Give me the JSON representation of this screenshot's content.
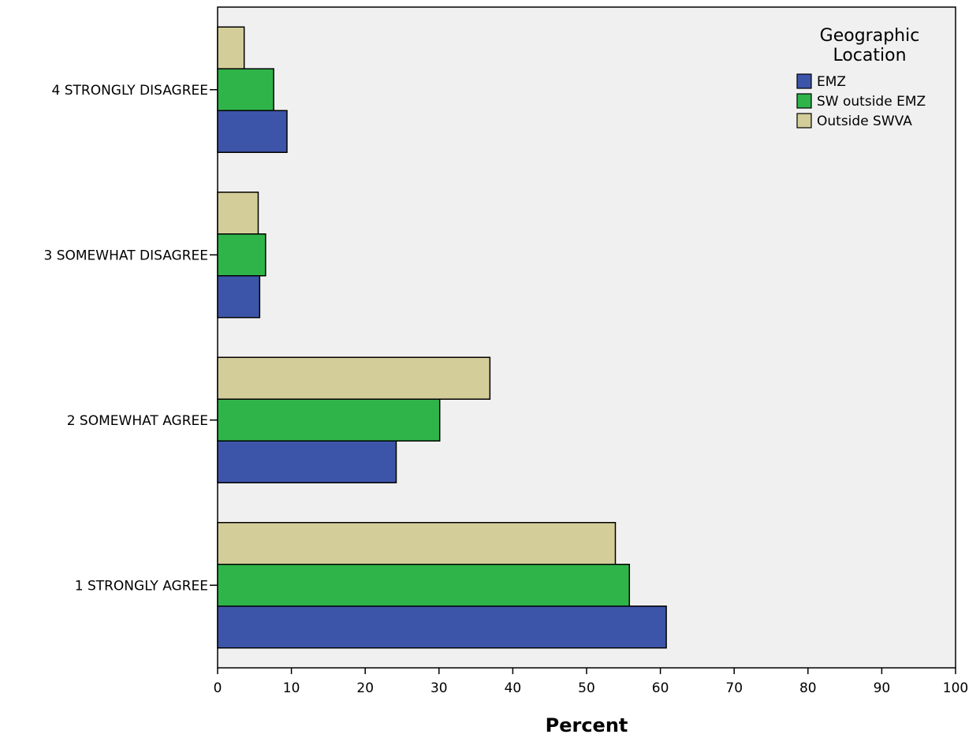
{
  "chart_data": {
    "type": "bar",
    "orientation": "horizontal",
    "title": "",
    "xlabel": "Percent",
    "ylabel": "",
    "xlim": [
      0,
      100
    ],
    "xticks": [
      0,
      10,
      20,
      30,
      40,
      50,
      60,
      70,
      80,
      90,
      100
    ],
    "grid": false,
    "legend": {
      "title_lines": [
        "Geographic",
        "Location"
      ],
      "placement": "top-right"
    },
    "categories": [
      "1  STRONGLY AGREE",
      "2  SOMEWHAT AGREE",
      "3  SOMEWHAT DISAGREE",
      "4  STRONGLY DISAGREE"
    ],
    "series": [
      {
        "name": "EMZ",
        "color": "#3d55a9",
        "values": [
          60.8,
          24.2,
          5.7,
          9.4
        ]
      },
      {
        "name": "SW outside EMZ",
        "color": "#2fb44a",
        "values": [
          55.8,
          30.1,
          6.5,
          7.6
        ]
      },
      {
        "name": "Outside SWVA",
        "color": "#d3cd99",
        "values": [
          53.9,
          36.9,
          5.5,
          3.6
        ]
      }
    ],
    "plot_background": "#f0f0f0",
    "bar_stroke": "#000000"
  }
}
